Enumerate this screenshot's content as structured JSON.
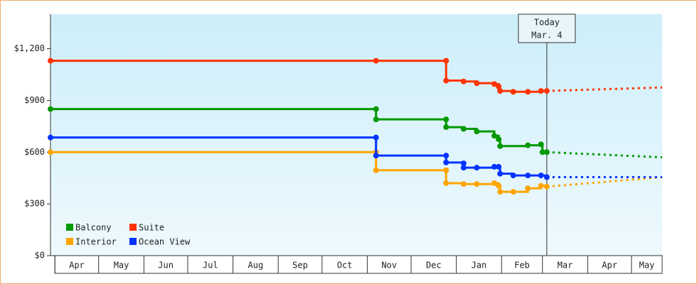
{
  "chart_data": {
    "type": "step-line",
    "xlim": [
      -3,
      416
    ],
    "xticks": [
      {
        "value": 0,
        "label": "Apr"
      },
      {
        "value": 30,
        "label": "May"
      },
      {
        "value": 61,
        "label": "Jun"
      },
      {
        "value": 91,
        "label": "Jul"
      },
      {
        "value": 122,
        "label": "Aug"
      },
      {
        "value": 153,
        "label": "Sep"
      },
      {
        "value": 183,
        "label": "Oct"
      },
      {
        "value": 214,
        "label": "Nov"
      },
      {
        "value": 244,
        "label": "Dec"
      },
      {
        "value": 275,
        "label": "Jan"
      },
      {
        "value": 306,
        "label": "Feb"
      },
      {
        "value": 334,
        "label": "Mar"
      },
      {
        "value": 365,
        "label": "Apr"
      },
      {
        "value": 395,
        "label": "May"
      }
    ],
    "ylim": [
      0,
      1400
    ],
    "yticks": [
      {
        "value": 0,
        "label": "$0"
      },
      {
        "value": 300,
        "label": "$300"
      },
      {
        "value": 600,
        "label": "$600"
      },
      {
        "value": 900,
        "label": "$900"
      },
      {
        "value": 1200,
        "label": "$1,200"
      }
    ],
    "today": {
      "x": 337,
      "label": "Today",
      "date": "Mar. 4"
    },
    "series": [
      {
        "name": "Balcony",
        "color": "#009900",
        "x": [
          -3,
          220,
          220,
          268,
          268,
          280,
          289,
          301,
          304,
          305,
          324,
          333,
          334,
          337
        ],
        "values": [
          850,
          850,
          790,
          790,
          745,
          735,
          720,
          695,
          675,
          635,
          640,
          645,
          600,
          600
        ],
        "projection_x": 416,
        "projection_value": 570
      },
      {
        "name": "Suite",
        "color": "#ff3300",
        "x": [
          -3,
          220,
          268,
          268,
          280,
          289,
          301,
          304,
          305,
          314,
          324,
          333,
          337
        ],
        "values": [
          1130,
          1130,
          1130,
          1015,
          1010,
          1000,
          995,
          980,
          955,
          950,
          950,
          955,
          955
        ],
        "projection_x": 416,
        "projection_value": 975
      },
      {
        "name": "Interior",
        "color": "#ffa500",
        "x": [
          -3,
          220,
          220,
          268,
          268,
          280,
          289,
          301,
          304,
          305,
          314,
          324,
          333,
          337
        ],
        "values": [
          600,
          600,
          495,
          495,
          420,
          415,
          415,
          420,
          405,
          370,
          370,
          390,
          405,
          400
        ],
        "projection_x": 416,
        "projection_value": 455
      },
      {
        "name": "Ocean View",
        "color": "#0033ff",
        "x": [
          -3,
          220,
          220,
          268,
          268,
          280,
          280,
          289,
          301,
          304,
          305,
          314,
          324,
          333,
          337
        ],
        "values": [
          685,
          685,
          580,
          580,
          540,
          535,
          510,
          510,
          515,
          515,
          475,
          465,
          465,
          465,
          455
        ],
        "projection_x": 416,
        "projection_value": 455
      }
    ]
  }
}
